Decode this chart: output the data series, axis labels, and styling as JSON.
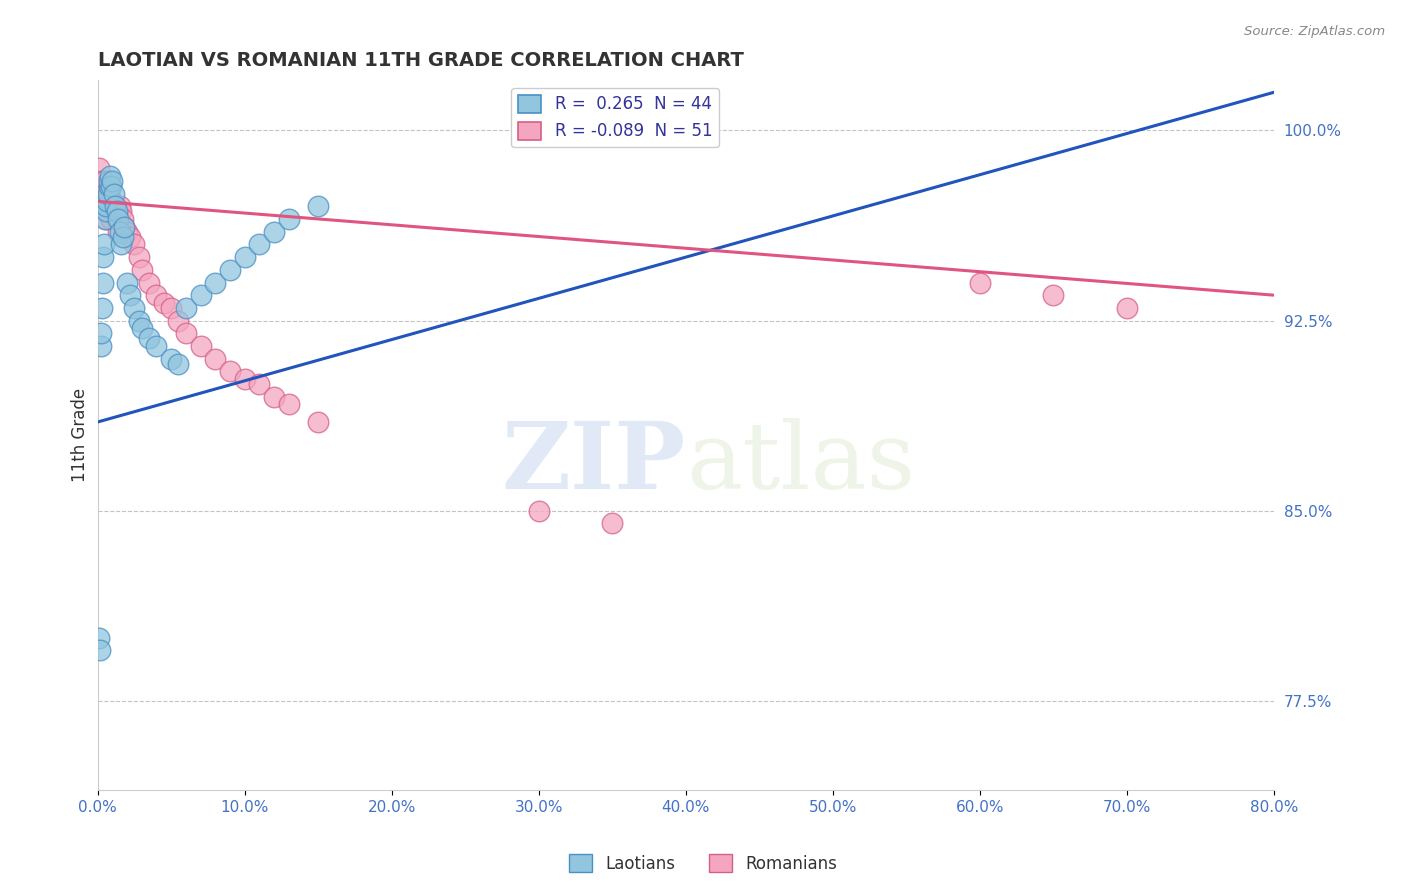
{
  "title": "LAOTIAN VS ROMANIAN 11TH GRADE CORRELATION CHART",
  "source_text": "Source: ZipAtlas.com",
  "ylabel": "11th Grade",
  "right_yticks": [
    100.0,
    92.5,
    85.0,
    77.5
  ],
  "right_ytick_labels": [
    "100.0%",
    "92.5%",
    "85.0%",
    "77.5%"
  ],
  "xlim": [
    0.0,
    80.0
  ],
  "ylim": [
    74.0,
    102.0
  ],
  "legend_blue_label": "R =  0.265  N = 44",
  "legend_pink_label": "R = -0.089  N = 51",
  "laotian_color": "#92c5de",
  "romanian_color": "#f4a6c0",
  "laotian_edge": "#4a90c4",
  "romanian_edge": "#d4608a",
  "trend_blue": "#2255bb",
  "trend_pink": "#e05580",
  "background_color": "#ffffff",
  "watermark_zip": "ZIP",
  "watermark_atlas": "atlas",
  "laotian_x": [
    0.1,
    0.15,
    0.2,
    0.25,
    0.3,
    0.35,
    0.4,
    0.45,
    0.5,
    0.55,
    0.6,
    0.65,
    0.7,
    0.75,
    0.8,
    0.85,
    0.9,
    1.0,
    1.1,
    1.2,
    1.3,
    1.4,
    1.5,
    1.6,
    1.7,
    1.8,
    2.0,
    2.2,
    2.5,
    2.8,
    3.0,
    3.5,
    4.0,
    5.0,
    5.5,
    6.0,
    7.0,
    8.0,
    9.0,
    10.0,
    11.0,
    12.0,
    13.0,
    15.0
  ],
  "laotian_y": [
    80.0,
    79.5,
    91.5,
    92.0,
    93.0,
    94.0,
    95.0,
    95.5,
    96.5,
    96.8,
    97.0,
    97.2,
    97.5,
    97.8,
    98.0,
    98.2,
    97.8,
    98.0,
    97.5,
    97.0,
    96.8,
    96.5,
    96.0,
    95.5,
    95.8,
    96.2,
    94.0,
    93.5,
    93.0,
    92.5,
    92.2,
    91.8,
    91.5,
    91.0,
    90.8,
    93.0,
    93.5,
    94.0,
    94.5,
    95.0,
    95.5,
    96.0,
    96.5,
    97.0
  ],
  "romanian_x": [
    0.1,
    0.15,
    0.2,
    0.25,
    0.3,
    0.35,
    0.4,
    0.45,
    0.5,
    0.55,
    0.6,
    0.65,
    0.7,
    0.75,
    0.8,
    0.85,
    0.9,
    0.95,
    1.0,
    1.1,
    1.2,
    1.3,
    1.4,
    1.5,
    1.6,
    1.7,
    1.8,
    2.0,
    2.2,
    2.5,
    2.8,
    3.0,
    3.5,
    4.0,
    4.5,
    5.0,
    5.5,
    6.0,
    7.0,
    8.0,
    9.0,
    10.0,
    11.0,
    12.0,
    13.0,
    15.0,
    30.0,
    35.0,
    60.0,
    65.0,
    70.0
  ],
  "romanian_y": [
    98.5,
    97.5,
    98.0,
    97.5,
    97.0,
    97.8,
    97.2,
    98.0,
    97.5,
    97.0,
    96.5,
    97.2,
    96.8,
    97.5,
    97.0,
    97.8,
    96.5,
    97.0,
    97.2,
    96.8,
    97.0,
    96.5,
    96.0,
    97.0,
    96.8,
    96.5,
    96.2,
    96.0,
    95.8,
    95.5,
    95.0,
    94.5,
    94.0,
    93.5,
    93.2,
    93.0,
    92.5,
    92.0,
    91.5,
    91.0,
    90.5,
    90.2,
    90.0,
    89.5,
    89.2,
    88.5,
    85.0,
    84.5,
    94.0,
    93.5,
    93.0
  ],
  "blue_line_x": [
    0.0,
    80.0
  ],
  "blue_line_y": [
    88.5,
    101.5
  ],
  "pink_line_x": [
    0.0,
    80.0
  ],
  "pink_line_y": [
    97.2,
    93.5
  ]
}
